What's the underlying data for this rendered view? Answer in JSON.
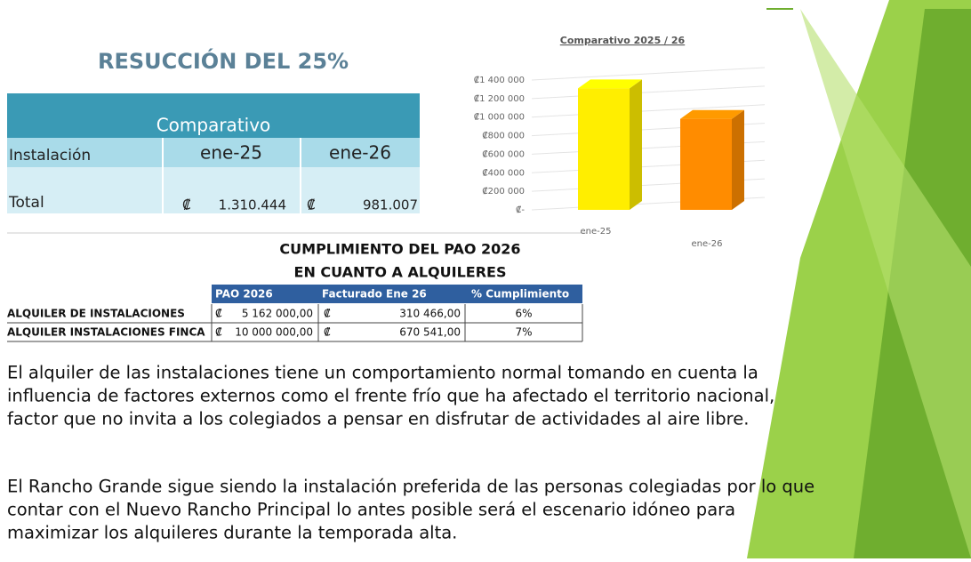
{
  "heading": "RESUCCIÓN  DEL 25%",
  "table1": {
    "title": "Comparativo",
    "header": [
      "Instalación",
      "ene-25",
      "ene-26"
    ],
    "row": [
      "Total",
      "₡",
      "1.310.444",
      "₡",
      "981.007"
    ]
  },
  "table2": {
    "title": [
      "CUMPLIMIENTO DEL PAO 2026",
      "EN CUANTO A ALQUILERES"
    ],
    "header": [
      "PAO 2026",
      "Facturado Ene 26",
      "% Cumplimiento"
    ],
    "rows": [
      [
        "ALQUILER DE INSTALACIONES",
        "₡",
        "5 162 000,00",
        "₡",
        "310 466,00",
        "6%"
      ],
      [
        "ALQUILER INSTALACIONES FINCA",
        "₡",
        "10 000 000,00",
        "₡",
        "670 541,00",
        "7%"
      ]
    ]
  },
  "paragraphs": [
    [
      "El alquiler de las instalaciones tiene un comportamiento normal tomando en cuenta la",
      "influencia de factores externos como el frente frío que ha afectado el territorio nacional,",
      "factor que no invita a los colegiados a pensar en disfrutar de actividades al aire libre."
    ],
    [
      "El Rancho Grande sigue siendo la instalación preferida de las personas colegiadas por lo que",
      "contar con el Nuevo Rancho Principal lo antes posible será el escenario idóneo para",
      "maximizar los alquileres durante la temporada alta."
    ]
  ],
  "chart_data": {
    "type": "bar3d",
    "title": "Comparativo  2025 / 26",
    "categories": [
      "ene-25",
      "ene-26"
    ],
    "values": [
      1310444,
      981007
    ],
    "colors": [
      "#ffee00",
      "#ff8c00"
    ],
    "ylim": [
      0,
      1400000
    ],
    "yticks": [
      {
        "value": 0,
        "label": "₡-"
      },
      {
        "value": 200000,
        "label": "₡200 000"
      },
      {
        "value": 400000,
        "label": "₡400 000"
      },
      {
        "value": 600000,
        "label": "₡600 000"
      },
      {
        "value": 800000,
        "label": "₡800 000"
      },
      {
        "value": 1000000,
        "label": "₡1 000 000"
      },
      {
        "value": 1200000,
        "label": "₡1 200 000"
      },
      {
        "value": 1400000,
        "label": "₡1 400 000"
      }
    ]
  }
}
